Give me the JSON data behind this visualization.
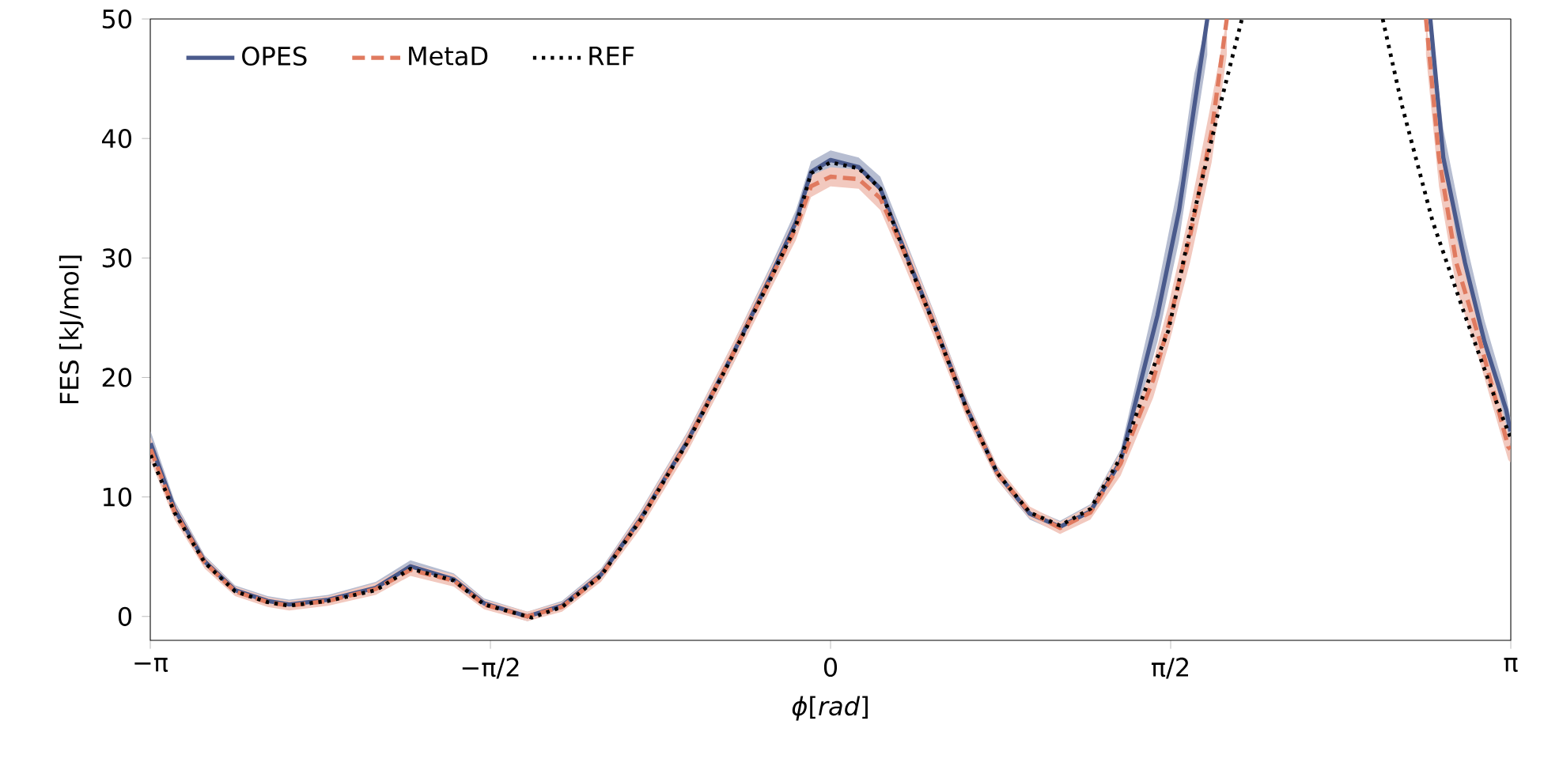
{
  "chart_data": {
    "type": "line",
    "xlabel": "*ϕ*[*rad*]",
    "ylabel": "FES [kJ/mol]",
    "xlim": [
      -3.1416,
      3.1416
    ],
    "ylim": [
      -2,
      50
    ],
    "xticks": [
      {
        "value": -3.1416,
        "label": "−π"
      },
      {
        "value": -1.5708,
        "label": "−π/2"
      },
      0,
      {
        "value": 1.5708,
        "label": "π/2"
      },
      {
        "value": 3.1416,
        "label": "π"
      }
    ],
    "yticks": [
      0,
      10,
      20,
      30,
      40,
      50
    ],
    "legend": "top left",
    "grid": false,
    "series": [
      {
        "name": "OPES",
        "color": "#4a5a8c",
        "line_style": "solid",
        "x": [
          -3.14,
          -3.03,
          -2.89,
          -2.75,
          -2.6,
          -2.5,
          -2.32,
          -2.1,
          -1.94,
          -1.74,
          -1.6,
          -1.4,
          -1.24,
          -1.06,
          -0.88,
          -0.66,
          -0.45,
          -0.27,
          -0.16,
          -0.09,
          0,
          0.13,
          0.23,
          0.34,
          0.48,
          0.63,
          0.77,
          0.92,
          1.06,
          1.2,
          1.34,
          1.51,
          1.61,
          1.68,
          1.74,
          2.25,
          2.77,
          2.83,
          2.93,
          3.02,
          3.12,
          3.14
        ],
        "values": [
          14.5,
          9.0,
          4.6,
          2.2,
          1.3,
          1.0,
          1.4,
          2.4,
          4.2,
          3.1,
          1.1,
          0.0,
          0.9,
          3.5,
          8.1,
          14.7,
          22.0,
          28.7,
          33.0,
          37.2,
          38.2,
          37.6,
          35.8,
          30.7,
          24.4,
          17.4,
          12.0,
          8.6,
          7.5,
          8.8,
          13.0,
          25.2,
          34.0,
          42.7,
          50,
          null,
          50,
          38.4,
          29.6,
          23.0,
          17.3,
          15.5
        ],
        "lower": [
          13.5,
          8.3,
          4.1,
          1.8,
          0.9,
          0.6,
          1.0,
          1.9,
          3.7,
          2.6,
          0.7,
          -0.4,
          0.5,
          3.0,
          7.4,
          13.9,
          21.1,
          27.8,
          32.0,
          36.3,
          37.4,
          36.8,
          34.8,
          29.6,
          23.4,
          16.6,
          11.4,
          8.1,
          7.0,
          8.2,
          12.0,
          23.0,
          31.5,
          40.0,
          47.0,
          null,
          47.0,
          36.0,
          27.5,
          21.2,
          16.0,
          14.4
        ],
        "upper": [
          15.5,
          9.7,
          5.1,
          2.6,
          1.7,
          1.4,
          1.8,
          2.9,
          4.7,
          3.6,
          1.5,
          0.4,
          1.3,
          4.0,
          8.8,
          15.5,
          22.9,
          29.6,
          34.0,
          38.1,
          39.0,
          38.4,
          36.8,
          31.8,
          25.4,
          18.2,
          12.6,
          9.1,
          8.0,
          9.4,
          14.0,
          27.4,
          36.5,
          45.4,
          50,
          null,
          50,
          40.8,
          31.7,
          24.8,
          18.6,
          16.6
        ]
      },
      {
        "name": "MetaD",
        "color": "#e07a5f",
        "line_style": "dashed",
        "x": [
          -3.14,
          -3.03,
          -2.89,
          -2.75,
          -2.6,
          -2.5,
          -2.32,
          -2.1,
          -1.94,
          -1.74,
          -1.6,
          -1.4,
          -1.24,
          -1.06,
          -0.88,
          -0.66,
          -0.45,
          -0.27,
          -0.16,
          -0.09,
          0,
          0.13,
          0.23,
          0.34,
          0.48,
          0.63,
          0.77,
          0.92,
          1.06,
          1.2,
          1.34,
          1.49,
          1.56,
          1.66,
          1.76,
          1.83,
          2.25,
          2.75,
          2.81,
          2.89,
          3.0,
          3.13,
          3.14
        ],
        "values": [
          14.0,
          8.8,
          4.5,
          2.1,
          1.2,
          0.9,
          1.3,
          2.3,
          3.9,
          3.0,
          1.0,
          0.0,
          0.8,
          3.4,
          8.0,
          14.6,
          22.0,
          28.5,
          32.5,
          36.0,
          36.8,
          36.6,
          35.0,
          30.5,
          24.3,
          17.3,
          12.0,
          8.7,
          7.4,
          8.7,
          12.8,
          19.8,
          24.3,
          31.8,
          40.6,
          50,
          null,
          50,
          38.4,
          29.6,
          23.0,
          14.2,
          14.0
        ],
        "lower": [
          13.0,
          8.1,
          4.0,
          1.7,
          0.8,
          0.5,
          0.9,
          1.8,
          3.4,
          2.5,
          0.6,
          -0.4,
          0.4,
          2.9,
          7.3,
          13.8,
          21.1,
          27.6,
          31.5,
          35.1,
          36.0,
          35.8,
          34.0,
          29.4,
          23.3,
          16.5,
          11.4,
          8.2,
          6.9,
          8.1,
          11.8,
          18.3,
          22.6,
          29.6,
          38.0,
          47.0,
          null,
          47.0,
          36.0,
          27.5,
          21.2,
          13.1,
          12.9
        ],
        "upper": [
          15.0,
          9.5,
          5.0,
          2.5,
          1.6,
          1.3,
          1.7,
          2.8,
          4.4,
          3.5,
          1.4,
          0.4,
          1.2,
          3.9,
          8.7,
          15.4,
          22.9,
          29.4,
          33.5,
          36.9,
          37.6,
          37.4,
          36.0,
          31.6,
          25.3,
          18.1,
          12.6,
          9.2,
          7.9,
          9.3,
          13.8,
          21.3,
          26.0,
          34.0,
          43.2,
          50,
          null,
          50,
          40.8,
          31.7,
          24.8,
          15.3,
          15.1
        ]
      },
      {
        "name": "REF",
        "color": "#000000",
        "line_style": "dotted",
        "x": [
          -3.14,
          -3.03,
          -2.89,
          -2.75,
          -2.6,
          -2.5,
          -2.32,
          -2.1,
          -1.94,
          -1.74,
          -1.6,
          -1.38,
          -1.24,
          -1.06,
          -0.88,
          -0.66,
          -0.45,
          -0.27,
          -0.16,
          -0.09,
          0,
          0.13,
          0.23,
          0.34,
          0.48,
          0.63,
          0.77,
          0.92,
          1.06,
          1.2,
          1.34,
          1.49,
          1.56,
          1.67,
          1.78,
          1.9,
          2.25,
          2.55,
          2.64,
          2.78,
          2.93,
          3.07,
          3.14
        ],
        "values": [
          13.5,
          8.7,
          4.5,
          2.1,
          1.2,
          0.9,
          1.3,
          2.2,
          4.0,
          3.0,
          1.0,
          -0.1,
          0.8,
          3.4,
          8.0,
          14.6,
          21.9,
          28.5,
          32.7,
          37.1,
          38.0,
          37.5,
          35.8,
          30.5,
          24.3,
          17.3,
          12.0,
          8.7,
          7.6,
          9.0,
          13.3,
          20.8,
          23.9,
          33.1,
          41.4,
          50,
          null,
          50,
          42.7,
          33.1,
          25.2,
          18.2,
          15.0
        ]
      }
    ]
  }
}
